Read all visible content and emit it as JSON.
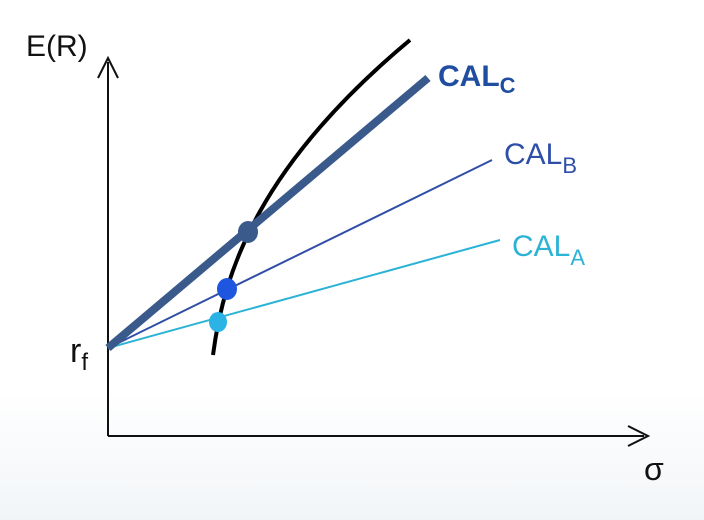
{
  "axes": {
    "y_label": "E(R)",
    "x_label": "σ",
    "rf_label": {
      "main": "r",
      "sub": "f"
    }
  },
  "lines": [
    {
      "id": "cal-a",
      "label_main": "CAL",
      "label_sub": "A",
      "color": "#2bb3d6"
    },
    {
      "id": "cal-b",
      "label_main": "CAL",
      "label_sub": "B",
      "color": "#2f4ea8"
    },
    {
      "id": "cal-c",
      "label_main": "CAL",
      "label_sub": "C",
      "color": "#3a5a8c",
      "label_color": "#1f4ea0"
    }
  ],
  "curve": {
    "color": "#000000"
  },
  "points": [
    {
      "id": "portfolio-a",
      "color": "#2bb3e6"
    },
    {
      "id": "portfolio-b",
      "color": "#1f56e0"
    },
    {
      "id": "portfolio-c",
      "color": "#3a5a8c"
    }
  ],
  "axis_color": "#111111"
}
